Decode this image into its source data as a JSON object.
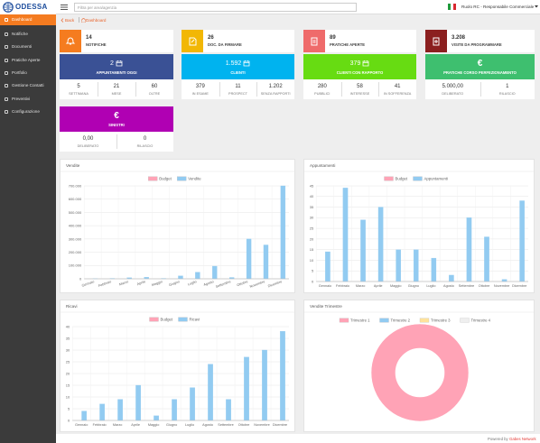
{
  "sidebar": {
    "logo": "ODESSA",
    "menu": [
      "Dashboard",
      "Notifiche",
      "Documenti",
      "Pratiche Aperte",
      "Portfolio",
      "Gestione Contatti",
      "Preventivi",
      "Configurazione"
    ]
  },
  "topbar": {
    "search_placeholder": "Filtra per area/agenzia",
    "user": "Ruolo RC - Responsabile Commerciale"
  },
  "breadcrumb": {
    "back": "Back",
    "current": "Dashboard"
  },
  "summary": [
    {
      "value": "14",
      "label": "NOTIFICHE",
      "color": "#f57c1f"
    },
    {
      "value": "26",
      "label": "DOC. DA FIRMARE",
      "color": "#f2b705"
    },
    {
      "value": "89",
      "label": "PRATICHE APERTE",
      "color": "#ef6b6b"
    },
    {
      "value": "3.208",
      "label": "VISITE DA PROGRAMMARE",
      "color": "#8b1f1f"
    }
  ],
  "cards": [
    {
      "value": "2",
      "title": "APPUNTAMENTI OGGI",
      "color": "#3a5195",
      "stats": [
        {
          "value": "5",
          "label": "SETTIMANA"
        },
        {
          "value": "21",
          "label": "MESE"
        },
        {
          "value": "60",
          "label": "OLTRE"
        }
      ]
    },
    {
      "value": "1.592",
      "title": "CLIENTI",
      "color": "#00b3ef",
      "stats": [
        {
          "value": "379",
          "label": "IN ESAME"
        },
        {
          "value": "11",
          "label": "PROSPECT"
        },
        {
          "value": "1.202",
          "label": "SENZA RAPPORTI"
        }
      ]
    },
    {
      "value": "379",
      "title": "CLIENTI CON RAPPORTO",
      "color": "#67dc12",
      "stats": [
        {
          "value": "280",
          "label": "PUBBLICI"
        },
        {
          "value": "58",
          "label": "INTERESSE"
        },
        {
          "value": "41",
          "label": "IN SOFFERENZA"
        }
      ]
    },
    {
      "icon": "€",
      "title": "PRATICHE CORSO PERFEZIONAMENTO",
      "color": "#3ebf6f",
      "stats": [
        {
          "value": "5.000,00",
          "label": "DELIBERATO"
        },
        {
          "value": "1",
          "label": "RILASCIO"
        }
      ]
    },
    {
      "icon": "€",
      "title": "SINISTRI",
      "color": "#b000b3",
      "stats": [
        {
          "value": "0,00",
          "label": "DELIBERATO"
        },
        {
          "value": "0",
          "label": "RILASCIO"
        }
      ]
    }
  ],
  "footer": {
    "text": "Powered by",
    "link": "Gabes Network"
  },
  "chart_data": [
    {
      "type": "bar",
      "title": "Vendite",
      "legend": "top",
      "grid": true,
      "categories": [
        "Gennaio",
        "Febbraio",
        "Marzo",
        "Aprile",
        "Maggio",
        "Giugno",
        "Luglio",
        "Agosto",
        "Settembre",
        "Ottobre",
        "Novembre",
        "Dicembre"
      ],
      "series": [
        {
          "name": "Budget",
          "color": "#ffa3b6",
          "values": [
            0,
            0,
            0,
            0,
            0,
            0,
            0,
            0,
            0,
            0,
            0,
            0
          ]
        },
        {
          "name": "Vendite",
          "color": "#92cbf1",
          "values": [
            1000,
            3000,
            8000,
            12000,
            3000,
            22000,
            50000,
            95000,
            10000,
            300000,
            255000,
            700000
          ]
        }
      ],
      "ylim": [
        0,
        700000
      ],
      "yticks": [
        0,
        {
          "value": 100000,
          "label": "100.000"
        },
        {
          "value": 200000,
          "label": "200.000"
        },
        {
          "value": 300000,
          "label": "300.000"
        },
        {
          "value": 400000,
          "label": "400.000"
        },
        {
          "value": 500000,
          "label": "500.000"
        },
        {
          "value": 600000,
          "label": "600.000"
        },
        {
          "value": 700000,
          "label": "700.000"
        }
      ]
    },
    {
      "type": "bar",
      "title": "Appuntamenti",
      "legend": "top",
      "grid": true,
      "categories": [
        "Gennaio",
        "Febbraio",
        "Marzo",
        "Aprile",
        "Maggio",
        "Giugno",
        "Luglio",
        "Agosto",
        "Settembre",
        "Ottobre",
        "Novembre",
        "Dicembre"
      ],
      "series": [
        {
          "name": "Budget",
          "color": "#ffa3b6",
          "values": [
            0,
            0,
            0,
            0,
            0,
            0,
            0,
            0,
            0,
            0,
            0,
            0
          ]
        },
        {
          "name": "Appuntamenti",
          "color": "#92cbf1",
          "values": [
            14,
            44,
            29,
            35,
            15,
            15,
            11,
            3,
            30,
            21,
            1,
            38
          ]
        }
      ],
      "ylim": [
        0,
        45
      ],
      "yticks": [
        0,
        5,
        10,
        15,
        20,
        25,
        30,
        35,
        40,
        45
      ]
    },
    {
      "type": "bar",
      "title": "Ricavi",
      "legend": "top",
      "grid": true,
      "categories": [
        "Gennaio",
        "Febbraio",
        "Marzo",
        "Aprile",
        "Maggio",
        "Giugno",
        "Luglio",
        "Agosto",
        "Settembre",
        "Ottobre",
        "Novembre",
        "Dicembre"
      ],
      "series": [
        {
          "name": "Budget",
          "color": "#ffa3b6",
          "values": [
            0,
            0,
            0,
            0,
            0,
            0,
            0,
            0,
            0,
            0,
            0,
            0
          ]
        },
        {
          "name": "Ricavi",
          "color": "#92cbf1",
          "values": [
            4,
            7,
            9,
            15,
            2,
            9,
            14,
            24,
            9,
            27,
            30,
            38
          ]
        }
      ],
      "ylim": [
        0,
        40
      ],
      "yticks": [
        0,
        5,
        10,
        15,
        20,
        25,
        30,
        35,
        40
      ]
    },
    {
      "type": "doughnut",
      "title": "Vendite Trimestre",
      "legend": "top",
      "categories": [
        "Trimestre 1",
        "Trimestre 2",
        "Trimestre 3",
        "Trimestre 4"
      ],
      "values": [
        100,
        0,
        0,
        0
      ],
      "colors": [
        "#ffa3b6",
        "#92cbf1",
        "#ffe29b",
        "#efefef"
      ]
    }
  ]
}
